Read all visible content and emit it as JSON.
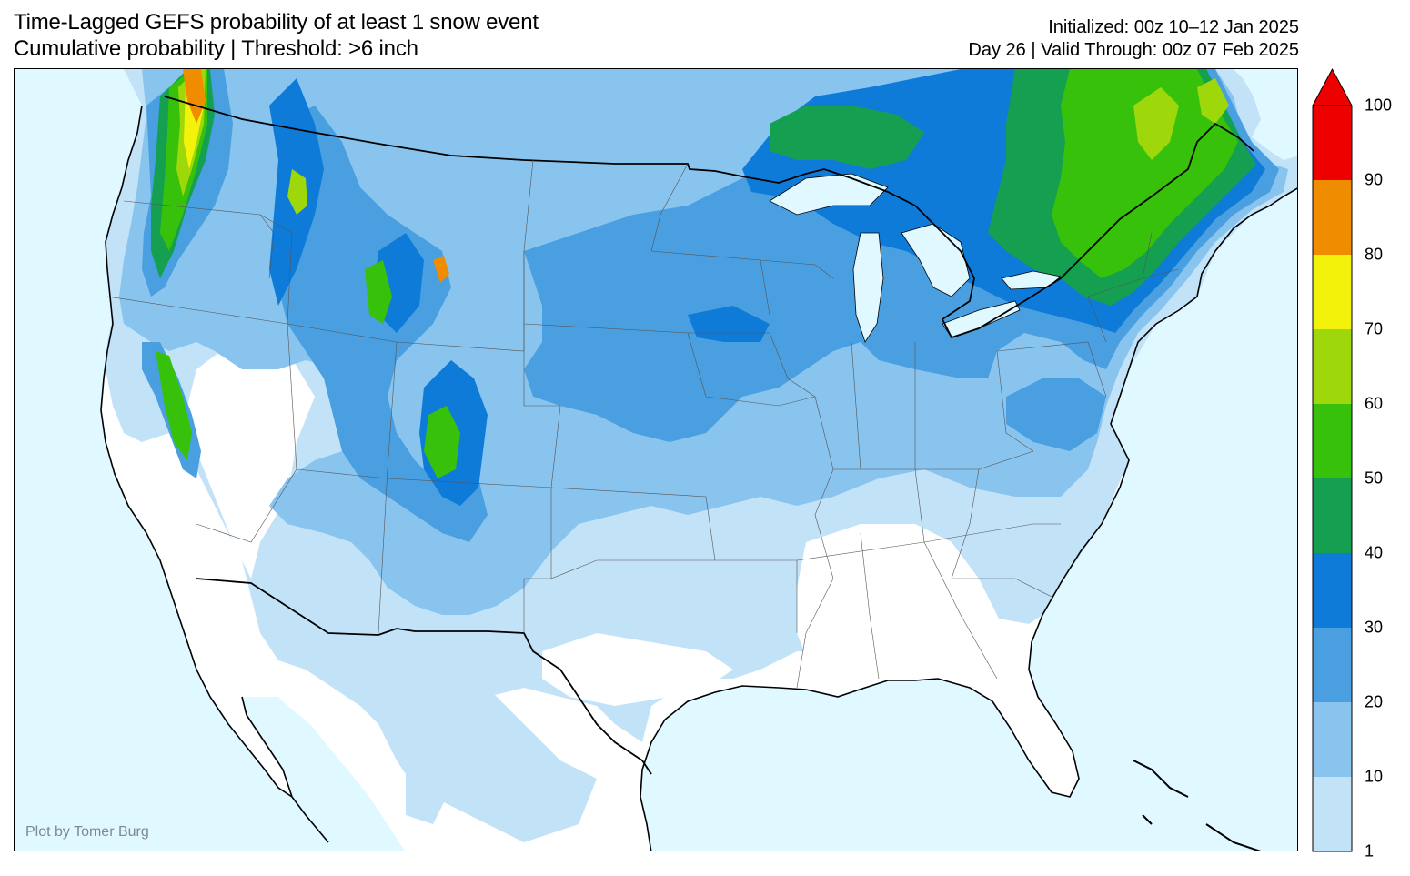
{
  "title": {
    "line1": "Time-Lagged GEFS probability of at least 1 snow event",
    "line2": "Cumulative probability | Threshold: >6 inch"
  },
  "info": {
    "line1": "Initialized: 00z 10–12 Jan 2025",
    "line2": "Day 26 | Valid Through: 00z 07 Feb 2025"
  },
  "credit": "Plot by Tomer Burg",
  "colors": {
    "ocean": "#e0f8ff",
    "land": "#ffffff",
    "lev1": "#c2e2f8",
    "lev2": "#89c4ef",
    "lev3": "#4a9fe0",
    "lev4": "#0f7bd9",
    "lev5": "#14a050",
    "lev6": "#38c10a",
    "lev7": "#9ed80a",
    "lev8": "#f2f20a",
    "lev9": "#f08c00",
    "lev10": "#ee0000"
  },
  "colorbar": {
    "levels": [
      {
        "label": "1",
        "color": "#c2e2f8"
      },
      {
        "label": "10",
        "color": "#89c4ef"
      },
      {
        "label": "20",
        "color": "#4a9fe0"
      },
      {
        "label": "30",
        "color": "#0f7bd9"
      },
      {
        "label": "40",
        "color": "#14a050"
      },
      {
        "label": "50",
        "color": "#38c10a"
      },
      {
        "label": "60",
        "color": "#9ed80a"
      },
      {
        "label": "70",
        "color": "#f2f20a"
      },
      {
        "label": "80",
        "color": "#f08c00"
      },
      {
        "label": "90",
        "color": "#ee0000"
      },
      {
        "label": "100",
        "color": ""
      }
    ]
  }
}
